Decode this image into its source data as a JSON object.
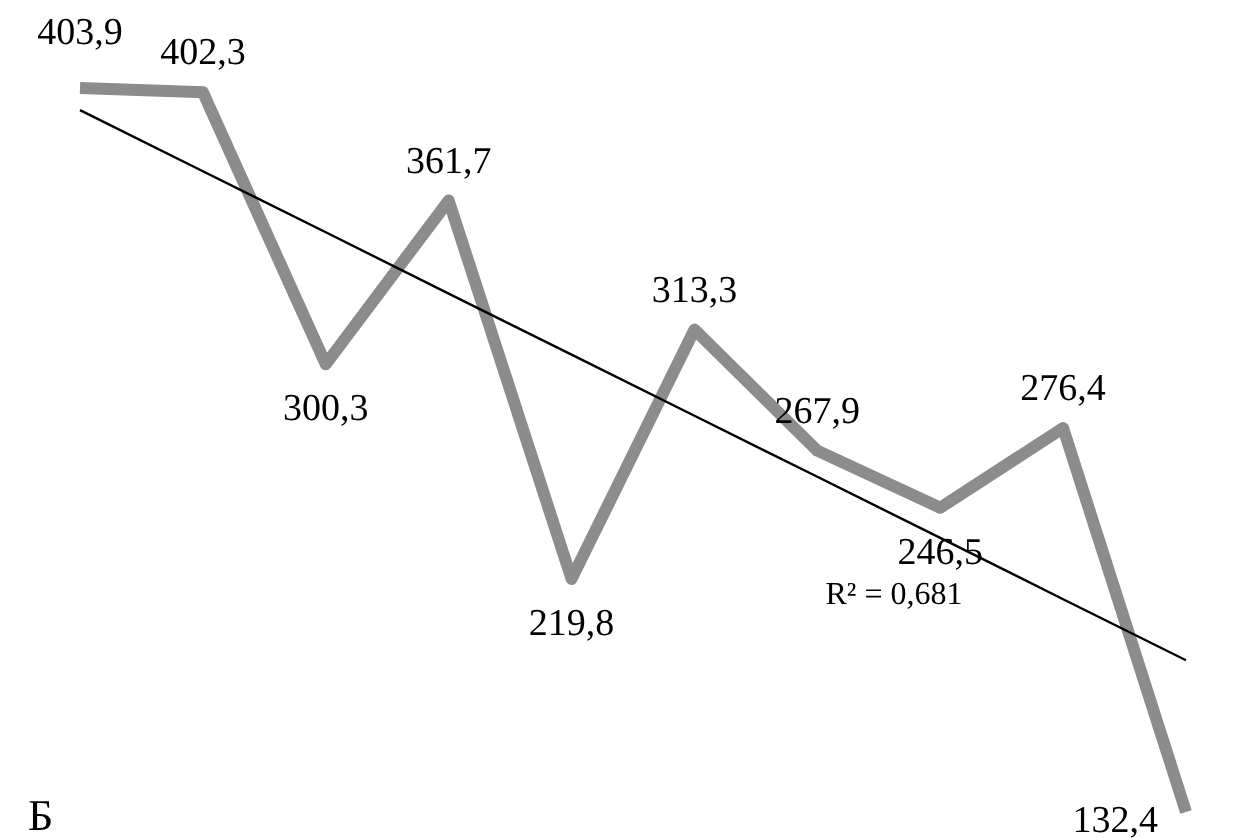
{
  "chart_data": {
    "type": "line",
    "categories": [
      null,
      null,
      null,
      null,
      null,
      null,
      null,
      null,
      null,
      null
    ],
    "series": [
      {
        "color": "#8c8c8c",
        "values": [
          403.9,
          402.3,
          300.3,
          361.7,
          219.8,
          313.3,
          267.9,
          246.5,
          276.4,
          132.4
        ],
        "value_labels": [
          "403,9",
          "402,3",
          "300,3",
          "361,7",
          "219,8",
          "313,3",
          "267,9",
          "246,5",
          "276,4",
          "132,4"
        ]
      },
      {
        "type": "line",
        "color": "#000000",
        "values": [
          395.6,
          372.7,
          349.8,
          326.8,
          303.9,
          281.0,
          258.1,
          235.2,
          212.2,
          189.3
        ]
      }
    ],
    "annotations": [
      "R² = 0,681",
      "Б"
    ],
    "line_style": "solid"
  }
}
